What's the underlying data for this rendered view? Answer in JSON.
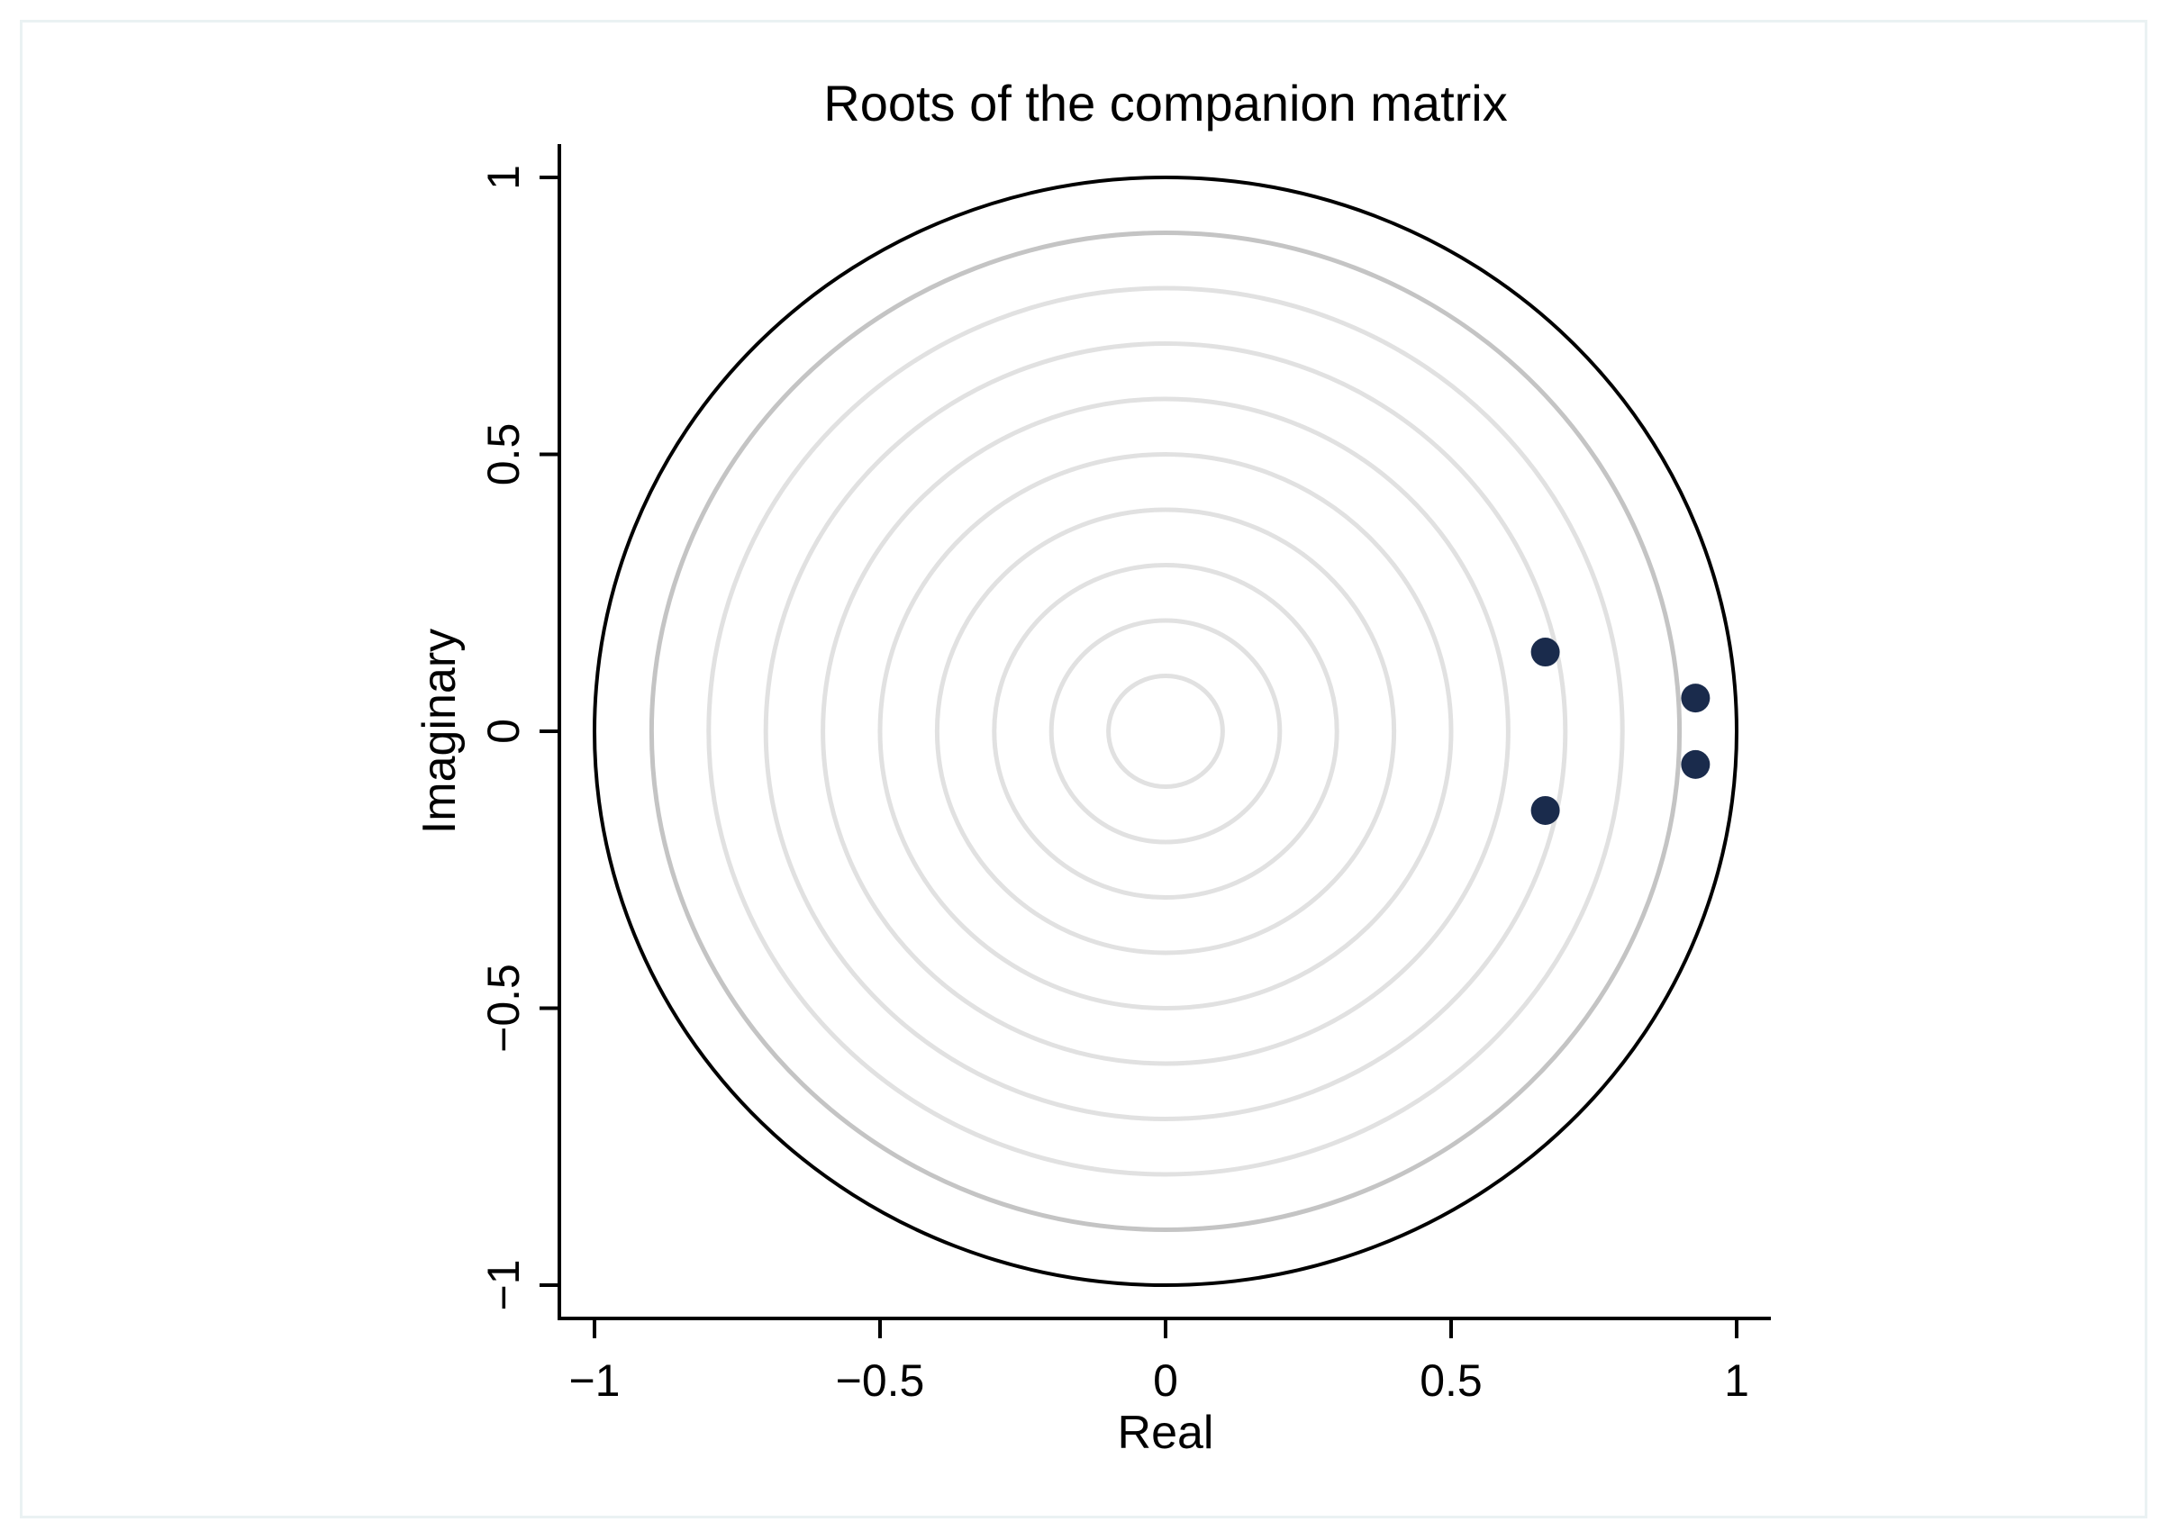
{
  "chart_data": {
    "type": "scatter",
    "title": "Roots of the companion matrix",
    "xlabel": "Real",
    "ylabel": "Imaginary",
    "xlim": [
      -1,
      1
    ],
    "ylim": [
      -1,
      1
    ],
    "xticks": [
      {
        "value": -1,
        "label": "−1"
      },
      {
        "value": -0.5,
        "label": "−0.5"
      },
      {
        "value": 0,
        "label": "0"
      },
      {
        "value": 0.5,
        "label": "0.5"
      },
      {
        "value": 1,
        "label": "1"
      }
    ],
    "yticks": [
      {
        "value": -1,
        "label": "−1"
      },
      {
        "value": -0.5,
        "label": "−0.5"
      },
      {
        "value": 0,
        "label": "0"
      },
      {
        "value": 0.5,
        "label": "0.5"
      },
      {
        "value": 1,
        "label": "1"
      }
    ],
    "points": [
      {
        "x": 0.665,
        "y": 0.143
      },
      {
        "x": 0.665,
        "y": -0.143
      },
      {
        "x": 0.928,
        "y": 0.06
      },
      {
        "x": 0.928,
        "y": -0.06
      }
    ],
    "reference_circles": [
      1.0,
      0.9,
      0.8,
      0.7,
      0.6,
      0.5,
      0.4,
      0.3,
      0.2,
      0.1
    ],
    "grid": false,
    "legend": "none",
    "colors": {
      "points": "#1a2b4c",
      "unit_circle": "#000000",
      "circle_0_9": "#c4c4c4",
      "inner_circles": "#e1e1e1",
      "axis": "#000000",
      "frame_border": "#eaf2f3"
    }
  }
}
